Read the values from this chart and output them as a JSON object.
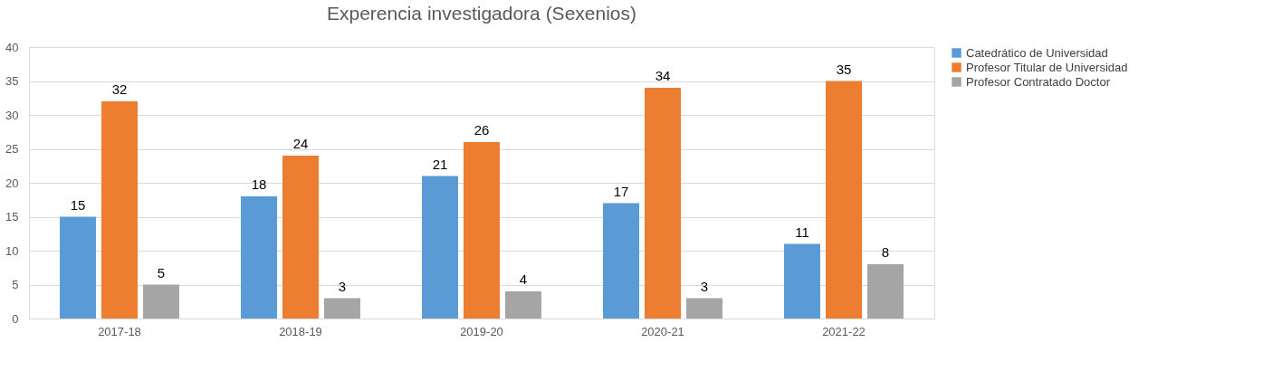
{
  "chart_data": {
    "type": "bar",
    "title": "Experencia investigadora (Sexenios)",
    "categories": [
      "2017-18",
      "2018-19",
      "2019-20",
      "2020-21",
      "2021-22"
    ],
    "series": [
      {
        "name": "Catedrático de Universidad",
        "color": "#5b9bd5",
        "values": [
          15,
          18,
          21,
          17,
          11
        ]
      },
      {
        "name": "Profesor Titular de Universidad",
        "color": "#ed7d31",
        "values": [
          32,
          24,
          26,
          34,
          35
        ]
      },
      {
        "name": "Profesor Contratado Doctor",
        "color": "#a5a5a5",
        "values": [
          5,
          3,
          4,
          3,
          8
        ]
      }
    ],
    "ylim": [
      0,
      40
    ],
    "yticks": [
      0,
      5,
      10,
      15,
      20,
      25,
      30,
      35,
      40
    ],
    "grid": "y",
    "legend": "right",
    "data_labels": true
  }
}
